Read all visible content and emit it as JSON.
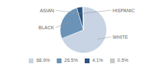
{
  "chart_data": {
    "type": "pie",
    "categories": [
      "WHITE",
      "BLACK",
      "ASIAN",
      "HISPANIC"
    ],
    "values": [
      68.9,
      26.5,
      4.1,
      0.5
    ],
    "value_labels": [
      "68.9%",
      "26.5%",
      "4.1%",
      "0.5%"
    ],
    "colors": [
      "#c8d4e3",
      "#6b93b8",
      "#2e5480",
      "#c8c8c8"
    ],
    "legend": "bottom"
  }
}
